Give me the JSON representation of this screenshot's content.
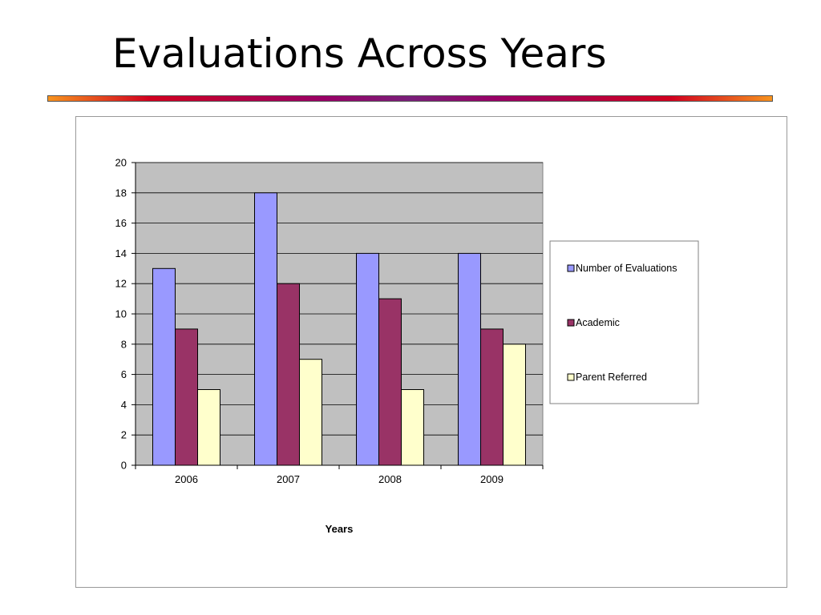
{
  "slide": {
    "title": "Evaluations Across Years"
  },
  "chart_data": {
    "type": "bar",
    "title": "",
    "xlabel": "Years",
    "ylabel": "",
    "categories": [
      "2006",
      "2007",
      "2008",
      "2009"
    ],
    "ylim": [
      0,
      20
    ],
    "yticks": [
      0,
      2,
      4,
      6,
      8,
      10,
      12,
      14,
      16,
      18,
      20
    ],
    "grid": true,
    "legend_position": "right",
    "plot_background": "#c0c0c0",
    "series": [
      {
        "name": "Number of Evaluations",
        "color": "#9999ff",
        "values": [
          13,
          18,
          14,
          14
        ]
      },
      {
        "name": "Academic",
        "color": "#993366",
        "values": [
          9,
          12,
          11,
          9
        ]
      },
      {
        "name": "Parent Referred",
        "color": "#ffffcc",
        "values": [
          5,
          7,
          5,
          8
        ]
      }
    ]
  }
}
